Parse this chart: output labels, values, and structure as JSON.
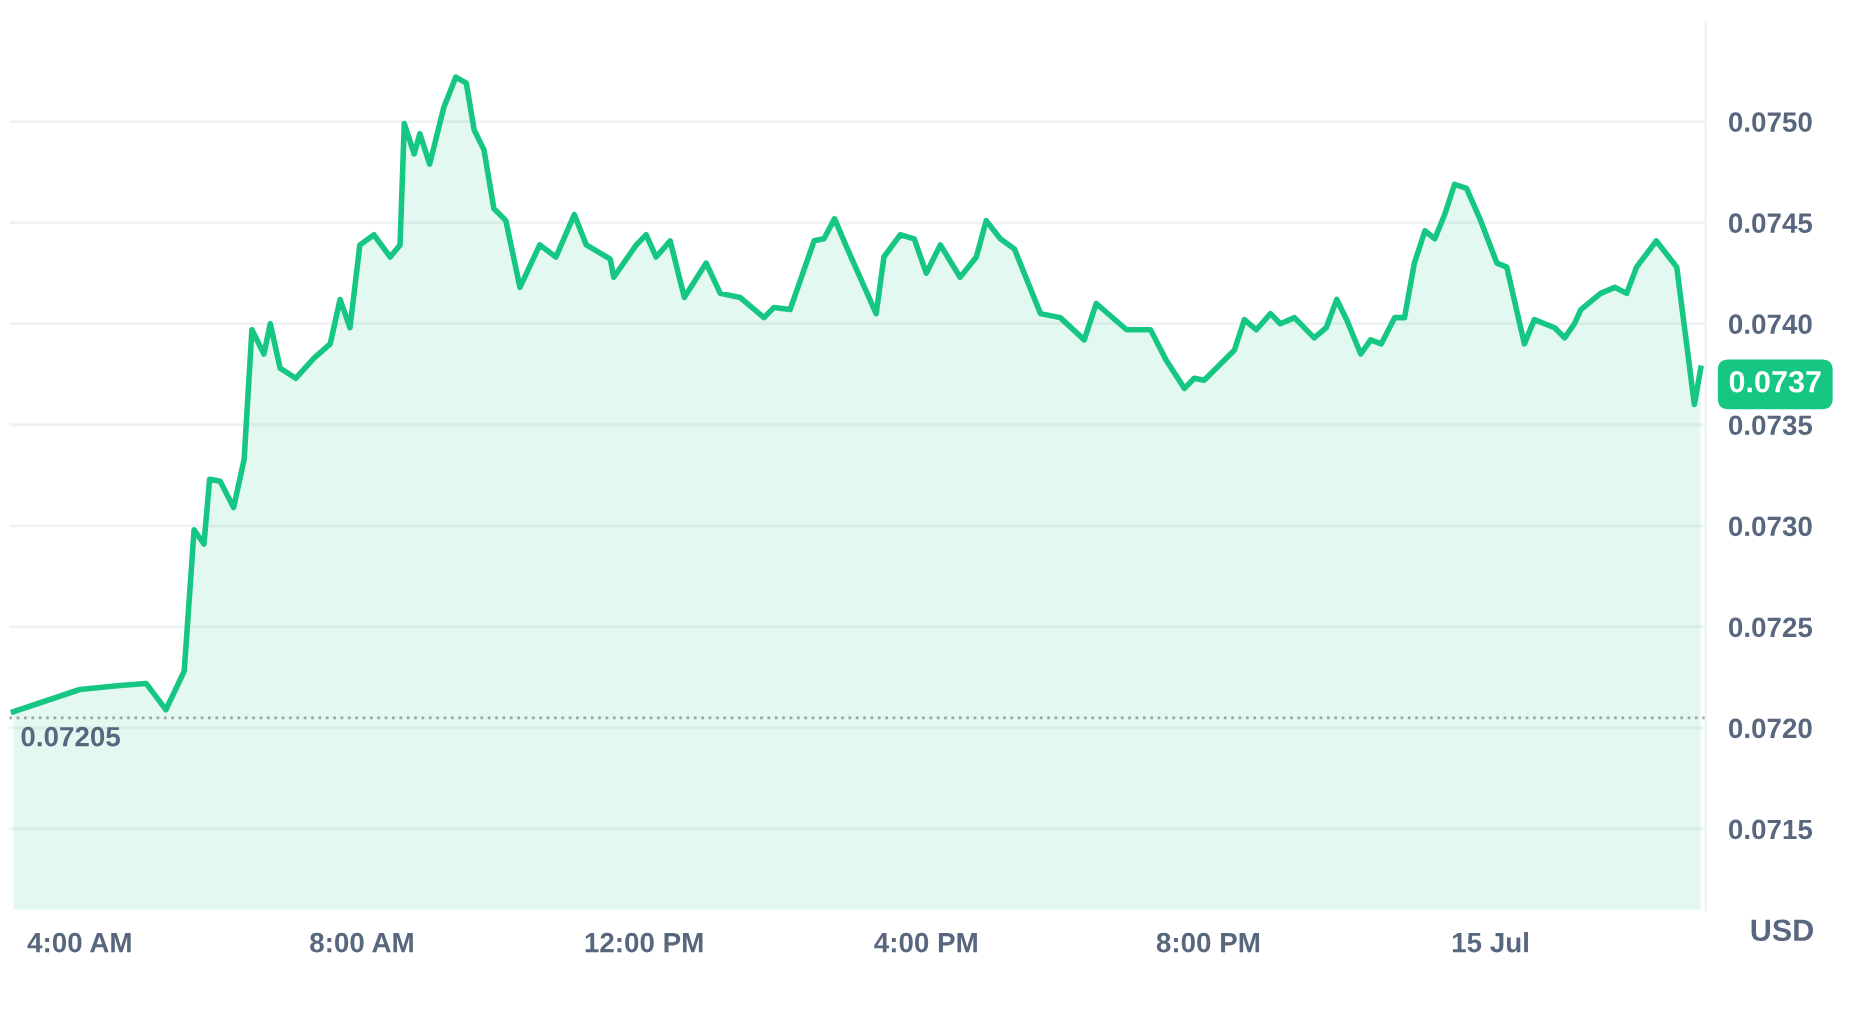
{
  "chart_data": {
    "type": "area",
    "ylabel": "USD",
    "xlim": [
      3,
      27.05
    ],
    "ylim": [
      0.0711,
      0.0755
    ],
    "xticks": [
      {
        "value": 4,
        "label": "4:00 AM"
      },
      {
        "value": 8,
        "label": "8:00 AM"
      },
      {
        "value": 12,
        "label": "12:00 PM"
      },
      {
        "value": 16,
        "label": "4:00 PM"
      },
      {
        "value": 20,
        "label": "8:00 PM"
      },
      {
        "value": 24,
        "label": "15 Jul"
      }
    ],
    "yticks": [
      {
        "value": 0.0715,
        "label": "0.0715"
      },
      {
        "value": 0.072,
        "label": "0.0720"
      },
      {
        "value": 0.0725,
        "label": "0.0725"
      },
      {
        "value": 0.073,
        "label": "0.0730"
      },
      {
        "value": 0.0735,
        "label": "0.0735"
      },
      {
        "value": 0.074,
        "label": "0.0740"
      },
      {
        "value": 0.0745,
        "label": "0.0745"
      },
      {
        "value": 0.075,
        "label": "0.0750"
      }
    ],
    "grid": "y",
    "marker": "none",
    "line_style": "solid",
    "ref_lines": [
      {
        "axis": "y",
        "value": 0.07205,
        "label": "0.07205",
        "color": "#a0a4ad",
        "line_style": "dotted"
      }
    ],
    "annotations": [
      {
        "text": "0.0737",
        "x": 26.98,
        "y": 0.0737
      }
    ],
    "series": [
      {
        "color": "#16c784",
        "x": [
          3.06,
          4.0,
          4.57,
          4.94,
          5.22,
          5.48,
          5.62,
          5.76,
          5.84,
          5.99,
          6.18,
          6.33,
          6.44,
          6.61,
          6.7,
          6.84,
          7.06,
          7.32,
          7.55,
          7.69,
          7.83,
          7.97,
          8.17,
          8.4,
          8.54,
          8.6,
          8.74,
          8.82,
          8.96,
          9.16,
          9.33,
          9.48,
          9.59,
          9.73,
          9.87,
          10.04,
          10.24,
          10.52,
          10.75,
          11.01,
          11.18,
          11.52,
          11.57,
          11.89,
          12.03,
          12.17,
          12.37,
          12.57,
          12.88,
          13.08,
          13.36,
          13.7,
          13.84,
          14.07,
          14.41,
          14.55,
          14.7,
          14.87,
          15.29,
          15.4,
          15.63,
          15.83,
          16.0,
          16.2,
          16.48,
          16.71,
          16.85,
          17.05,
          17.25,
          17.62,
          17.9,
          18.24,
          18.41,
          18.84,
          19.18,
          19.4,
          19.66,
          19.8,
          19.94,
          20.37,
          20.51,
          20.68,
          20.88,
          21.02,
          21.22,
          21.5,
          21.67,
          21.82,
          21.96,
          22.16,
          22.3,
          22.45,
          22.64,
          22.78,
          22.92,
          23.07,
          23.21,
          23.35,
          23.49,
          23.66,
          23.86,
          24.09,
          24.23,
          24.48,
          24.62,
          24.91,
          25.05,
          25.19,
          25.28,
          25.56,
          25.76,
          25.93,
          26.07,
          26.35,
          26.64,
          26.89,
          26.98
        ],
        "values": [
          0.07208,
          0.07219,
          0.07221,
          0.07222,
          0.07209,
          0.07228,
          0.07298,
          0.07291,
          0.07323,
          0.07322,
          0.07309,
          0.07333,
          0.07397,
          0.07385,
          0.074,
          0.07378,
          0.07373,
          0.07383,
          0.0739,
          0.07412,
          0.07398,
          0.07439,
          0.07444,
          0.07433,
          0.07439,
          0.07499,
          0.07484,
          0.07494,
          0.07479,
          0.07507,
          0.07522,
          0.07519,
          0.07496,
          0.07486,
          0.07457,
          0.07451,
          0.07418,
          0.07439,
          0.07433,
          0.07454,
          0.07439,
          0.07432,
          0.07423,
          0.07439,
          0.07444,
          0.07433,
          0.07441,
          0.07413,
          0.0743,
          0.07415,
          0.07413,
          0.07403,
          0.07408,
          0.07407,
          0.07441,
          0.07442,
          0.07452,
          0.07438,
          0.07405,
          0.07433,
          0.07444,
          0.07442,
          0.07425,
          0.07439,
          0.07423,
          0.07433,
          0.07451,
          0.07442,
          0.07437,
          0.07405,
          0.07403,
          0.07392,
          0.0741,
          0.07397,
          0.07397,
          0.07382,
          0.07368,
          0.07373,
          0.07372,
          0.07387,
          0.07402,
          0.07397,
          0.07405,
          0.074,
          0.07403,
          0.07393,
          0.07398,
          0.07412,
          0.07402,
          0.07385,
          0.07392,
          0.0739,
          0.07403,
          0.07403,
          0.0743,
          0.07446,
          0.07442,
          0.07454,
          0.07469,
          0.07467,
          0.07451,
          0.0743,
          0.07428,
          0.0739,
          0.07402,
          0.07398,
          0.07393,
          0.074,
          0.07407,
          0.07415,
          0.07418,
          0.07415,
          0.07428,
          0.07441,
          0.07428,
          0.0736,
          0.07378
        ]
      }
    ]
  }
}
